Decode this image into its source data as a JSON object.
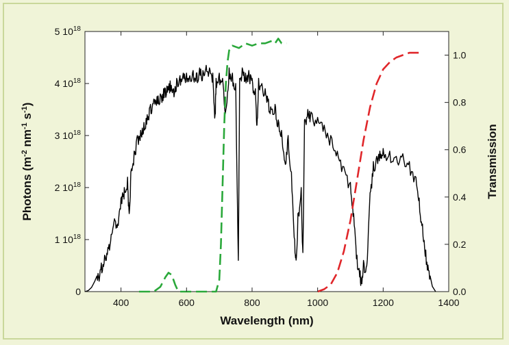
{
  "chart_data": {
    "type": "line",
    "title": "",
    "xlabel": "Wavelength (nm)",
    "ylabel_left": {
      "base": "Photons (m",
      "sup1": "-2",
      "mid1": " nm",
      "sup2": "-1",
      "mid2": " s",
      "sup3": "-1",
      "end": ")"
    },
    "ylabel_right": "Transmission",
    "xlim": [
      290,
      1400
    ],
    "ylim_left": [
      0,
      5e+18
    ],
    "ylim_right": [
      0.0,
      1.1
    ],
    "x_ticks": [
      400,
      600,
      800,
      1000,
      1200,
      1400
    ],
    "x_tick_labels": [
      "400",
      "600",
      "800",
      "1000",
      "1200",
      "1400"
    ],
    "y_left_ticks": [
      {
        "value": 0,
        "label": "0",
        "exp": ""
      },
      {
        "value": 1e+18,
        "label": "1 10",
        "exp": "18"
      },
      {
        "value": 2e+18,
        "label": "2 10",
        "exp": "18"
      },
      {
        "value": 3e+18,
        "label": "3 10",
        "exp": "18"
      },
      {
        "value": 4e+18,
        "label": "4 10",
        "exp": "18"
      },
      {
        "value": 5e+18,
        "label": "5 10",
        "exp": "18"
      }
    ],
    "y_right_ticks": [
      0.0,
      0.2,
      0.4,
      0.6,
      0.8,
      1.0
    ],
    "y_right_tick_labels": [
      "0.0",
      "0.2",
      "0.4",
      "0.6",
      "0.8",
      "1.0"
    ],
    "series": [
      {
        "axis": "left",
        "color": "#000000",
        "style": "solid",
        "x": [
          290,
          300,
          310,
          320,
          330,
          340,
          350,
          360,
          370,
          380,
          390,
          400,
          405,
          410,
          420,
          425,
          430,
          440,
          450,
          460,
          470,
          480,
          490,
          500,
          510,
          520,
          530,
          540,
          550,
          560,
          570,
          580,
          590,
          600,
          610,
          620,
          630,
          640,
          650,
          660,
          670,
          680,
          687,
          690,
          700,
          710,
          720,
          730,
          740,
          750,
          758,
          762,
          770,
          780,
          790,
          800,
          810,
          815,
          820,
          830,
          840,
          850,
          860,
          870,
          880,
          890,
          900,
          910,
          920,
          930,
          935,
          940,
          950,
          955,
          960,
          970,
          980,
          1000,
          1020,
          1040,
          1060,
          1080,
          1100,
          1110,
          1120,
          1130,
          1135,
          1140,
          1150,
          1160,
          1170,
          1180,
          1190,
          1200,
          1220,
          1240,
          1260,
          1280,
          1300,
          1310,
          1320,
          1330,
          1340,
          1350,
          1360
        ],
        "y": [
          0,
          2e+16,
          8e+16,
          2e+17,
          3.5e+17,
          5.5e+17,
          7e+17,
          8.5e+17,
          1.1e+18,
          1.4e+18,
          1.3e+18,
          1.8e+18,
          1.9e+18,
          2e+18,
          2.2e+18,
          1.5e+18,
          2.3e+18,
          2.7e+18,
          3e+18,
          3.1e+18,
          3.25e+18,
          3.4e+18,
          3.6e+18,
          3.7e+18,
          3.75e+18,
          3.8e+18,
          3.9e+18,
          3.95e+18,
          4.05e+18,
          3.9e+18,
          4.1e+18,
          4.15e+18,
          4.2e+18,
          4.2e+18,
          4.15e+18,
          4.25e+18,
          4.2e+18,
          4.3e+18,
          4.25e+18,
          4.35e+18,
          4.3e+18,
          4.2e+18,
          3.4e+18,
          4.1e+18,
          4.2e+18,
          4.1e+18,
          3.5e+18,
          4.3e+18,
          4.2e+18,
          4e+18,
          6e+17,
          4.1e+18,
          4.3e+18,
          4.2e+18,
          4.25e+18,
          4.1e+18,
          3.9e+18,
          3.2e+18,
          4.1e+18,
          4e+18,
          3.9e+18,
          3.7e+18,
          3.5e+18,
          3.6e+18,
          3.3e+18,
          3.1e+18,
          2.5e+18,
          3e+18,
          2.3e+18,
          1e+18,
          6.5e+17,
          1.5e+18,
          2e+18,
          7.5e+17,
          3.3e+18,
          3.5e+18,
          3.45e+18,
          3.35e+18,
          3.2e+18,
          3e+18,
          2.7e+18,
          2.4e+18,
          2.1e+18,
          1.5e+18,
          7e+17,
          4e+17,
          1.5e+17,
          6e+17,
          5e+17,
          1.9e+18,
          2.5e+18,
          2.6e+18,
          2.7e+18,
          2.75e+18,
          2.7e+18,
          2.6e+18,
          2.65e+18,
          2.5e+18,
          2.2e+18,
          1.8e+18,
          1.3e+18,
          8e+17,
          4e+17,
          1e+17,
          0.0
        ]
      },
      {
        "axis": "right",
        "color": "#2aa83a",
        "style": "dashed",
        "x": [
          455,
          500,
          520,
          535,
          545,
          555,
          565,
          575,
          600,
          650,
          690,
          700,
          705,
          710,
          715,
          720,
          725,
          730,
          740,
          760,
          780,
          800,
          820,
          840,
          860,
          870,
          880,
          890,
          905
        ],
        "y": [
          0.0,
          0.0,
          0.02,
          0.06,
          0.08,
          0.07,
          0.03,
          0.0,
          0.0,
          0.0,
          0.0,
          0.05,
          0.2,
          0.45,
          0.7,
          0.88,
          0.97,
          1.02,
          1.04,
          1.03,
          1.05,
          1.04,
          1.05,
          1.05,
          1.06,
          1.05,
          1.07,
          1.05,
          1.05
        ]
      },
      {
        "axis": "right",
        "color": "#e0262a",
        "style": "dashed",
        "x": [
          1000,
          1020,
          1040,
          1060,
          1080,
          1100,
          1120,
          1140,
          1160,
          1180,
          1200,
          1220,
          1240,
          1260,
          1280,
          1300,
          1310
        ],
        "y": [
          0.0,
          0.01,
          0.03,
          0.08,
          0.17,
          0.3,
          0.47,
          0.64,
          0.78,
          0.88,
          0.94,
          0.97,
          0.99,
          1.0,
          1.01,
          1.01,
          1.01
        ]
      }
    ]
  }
}
